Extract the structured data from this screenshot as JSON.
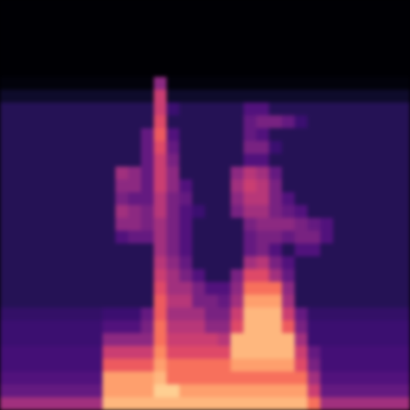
{
  "chart_data": {
    "type": "heatmap",
    "color": "magma",
    "tick_labels": false,
    "xlim": [
      0,
      32
    ],
    "ylim": [
      0,
      32
    ],
    "zlim": [
      0,
      100
    ],
    "values": [
      [
        45,
        45,
        45,
        45,
        45,
        45,
        45,
        45,
        85,
        85,
        85,
        85,
        85,
        85,
        85,
        85,
        85,
        85,
        85,
        85,
        85,
        85,
        85,
        85,
        70,
        45,
        45,
        45,
        45,
        45,
        45,
        45
      ],
      [
        30,
        30,
        30,
        30,
        30,
        30,
        30,
        30,
        80,
        80,
        80,
        80,
        90,
        90,
        80,
        80,
        80,
        80,
        80,
        80,
        80,
        80,
        80,
        80,
        55,
        30,
        30,
        30,
        30,
        30,
        30,
        30
      ],
      [
        25,
        25,
        25,
        25,
        25,
        25,
        25,
        25,
        80,
        80,
        80,
        80,
        85,
        70,
        70,
        70,
        70,
        70,
        70,
        70,
        70,
        70,
        70,
        70,
        45,
        25,
        25,
        25,
        25,
        25,
        25,
        25
      ],
      [
        22,
        22,
        22,
        22,
        22,
        22,
        22,
        22,
        65,
        65,
        65,
        65,
        80,
        70,
        70,
        70,
        70,
        70,
        80,
        80,
        80,
        80,
        80,
        60,
        35,
        22,
        22,
        22,
        22,
        22,
        22,
        22
      ],
      [
        22,
        22,
        22,
        22,
        22,
        22,
        22,
        22,
        55,
        55,
        55,
        55,
        75,
        60,
        60,
        60,
        60,
        60,
        85,
        85,
        85,
        85,
        85,
        55,
        30,
        22,
        22,
        22,
        22,
        22,
        22,
        22
      ],
      [
        20,
        20,
        20,
        20,
        20,
        20,
        20,
        20,
        40,
        40,
        40,
        40,
        70,
        55,
        55,
        55,
        55,
        50,
        85,
        85,
        85,
        85,
        85,
        45,
        20,
        20,
        20,
        20,
        20,
        20,
        20,
        20
      ],
      [
        20,
        20,
        20,
        20,
        20,
        20,
        20,
        20,
        25,
        25,
        25,
        35,
        70,
        50,
        50,
        50,
        40,
        40,
        60,
        85,
        85,
        85,
        65,
        35,
        20,
        20,
        20,
        20,
        20,
        20,
        20,
        20
      ],
      [
        18,
        18,
        18,
        18,
        18,
        18,
        18,
        18,
        20,
        20,
        20,
        30,
        65,
        45,
        45,
        45,
        35,
        35,
        55,
        85,
        85,
        85,
        55,
        30,
        18,
        18,
        18,
        18,
        18,
        18,
        18,
        18
      ],
      [
        15,
        15,
        15,
        15,
        15,
        15,
        15,
        15,
        15,
        15,
        15,
        15,
        65,
        50,
        50,
        35,
        35,
        30,
        45,
        80,
        80,
        80,
        45,
        15,
        15,
        15,
        15,
        15,
        15,
        15,
        15,
        15
      ],
      [
        15,
        15,
        15,
        15,
        15,
        15,
        15,
        15,
        15,
        15,
        15,
        15,
        60,
        45,
        45,
        35,
        25,
        25,
        40,
        70,
        70,
        70,
        40,
        15,
        15,
        15,
        15,
        15,
        15,
        15,
        15,
        15
      ],
      [
        15,
        15,
        15,
        15,
        15,
        15,
        15,
        15,
        15,
        15,
        15,
        15,
        55,
        45,
        35,
        25,
        15,
        15,
        35,
        60,
        60,
        45,
        30,
        15,
        15,
        15,
        15,
        15,
        15,
        15,
        15,
        15
      ],
      [
        15,
        15,
        15,
        15,
        15,
        15,
        15,
        15,
        15,
        15,
        15,
        15,
        50,
        40,
        30,
        15,
        15,
        15,
        15,
        45,
        50,
        35,
        25,
        15,
        15,
        15,
        15,
        15,
        15,
        15,
        15,
        15
      ],
      [
        15,
        15,
        15,
        15,
        15,
        15,
        15,
        15,
        15,
        15,
        15,
        15,
        45,
        35,
        25,
        15,
        15,
        15,
        15,
        30,
        35,
        25,
        15,
        25,
        25,
        15,
        15,
        15,
        15,
        15,
        15,
        15
      ],
      [
        15,
        15,
        15,
        15,
        15,
        15,
        15,
        15,
        15,
        25,
        30,
        30,
        45,
        35,
        25,
        15,
        15,
        15,
        15,
        30,
        35,
        35,
        30,
        35,
        35,
        25,
        15,
        15,
        15,
        15,
        15,
        15
      ],
      [
        15,
        15,
        15,
        15,
        15,
        15,
        15,
        15,
        15,
        40,
        40,
        35,
        45,
        35,
        25,
        15,
        15,
        15,
        15,
        35,
        40,
        40,
        40,
        35,
        30,
        25,
        15,
        15,
        15,
        15,
        15,
        15
      ],
      [
        15,
        15,
        15,
        15,
        15,
        15,
        15,
        15,
        15,
        45,
        40,
        35,
        50,
        35,
        25,
        20,
        15,
        15,
        35,
        45,
        45,
        35,
        30,
        25,
        15,
        15,
        15,
        15,
        15,
        15,
        15,
        15
      ],
      [
        15,
        15,
        15,
        15,
        15,
        15,
        15,
        15,
        15,
        35,
        30,
        30,
        50,
        35,
        30,
        15,
        15,
        15,
        40,
        50,
        50,
        35,
        25,
        15,
        15,
        15,
        15,
        15,
        15,
        15,
        15,
        15
      ],
      [
        15,
        15,
        15,
        15,
        15,
        15,
        15,
        15,
        15,
        40,
        40,
        30,
        55,
        40,
        25,
        15,
        15,
        15,
        45,
        55,
        50,
        35,
        15,
        15,
        15,
        15,
        15,
        15,
        15,
        15,
        15,
        15
      ],
      [
        15,
        15,
        15,
        15,
        15,
        15,
        15,
        15,
        15,
        45,
        40,
        30,
        55,
        40,
        15,
        15,
        15,
        15,
        40,
        50,
        45,
        30,
        15,
        15,
        15,
        15,
        15,
        15,
        15,
        15,
        15,
        15
      ],
      [
        15,
        15,
        15,
        15,
        15,
        15,
        15,
        15,
        15,
        15,
        15,
        30,
        55,
        35,
        15,
        15,
        15,
        15,
        15,
        25,
        25,
        15,
        15,
        15,
        15,
        15,
        15,
        15,
        15,
        15,
        15,
        15
      ],
      [
        15,
        15,
        15,
        15,
        15,
        15,
        15,
        15,
        15,
        15,
        15,
        30,
        60,
        30,
        15,
        15,
        15,
        15,
        15,
        35,
        35,
        20,
        15,
        15,
        15,
        15,
        15,
        15,
        15,
        15,
        15,
        15
      ],
      [
        15,
        15,
        15,
        15,
        15,
        15,
        15,
        15,
        15,
        15,
        15,
        30,
        65,
        25,
        15,
        15,
        15,
        15,
        15,
        30,
        25,
        15,
        15,
        15,
        15,
        15,
        15,
        15,
        15,
        15,
        15,
        15
      ],
      [
        15,
        15,
        15,
        15,
        15,
        15,
        15,
        15,
        15,
        15,
        15,
        15,
        60,
        15,
        15,
        15,
        15,
        15,
        15,
        30,
        35,
        35,
        30,
        20,
        15,
        15,
        15,
        15,
        15,
        15,
        15,
        15
      ],
      [
        15,
        15,
        15,
        15,
        15,
        15,
        15,
        15,
        15,
        15,
        15,
        15,
        55,
        20,
        15,
        15,
        15,
        15,
        15,
        25,
        25,
        15,
        15,
        15,
        15,
        15,
        15,
        15,
        15,
        15,
        15,
        15
      ],
      [
        8,
        8,
        8,
        8,
        8,
        8,
        8,
        8,
        8,
        8,
        8,
        8,
        55,
        8,
        8,
        8,
        8,
        8,
        8,
        8,
        8,
        8,
        8,
        8,
        8,
        8,
        8,
        8,
        8,
        8,
        8,
        8
      ],
      [
        2,
        2,
        2,
        2,
        2,
        2,
        2,
        2,
        2,
        2,
        2,
        2,
        40,
        2,
        2,
        2,
        2,
        2,
        2,
        2,
        2,
        2,
        2,
        2,
        2,
        2,
        2,
        2,
        2,
        2,
        2,
        2
      ],
      [
        0,
        0,
        0,
        0,
        0,
        0,
        0,
        0,
        0,
        0,
        0,
        0,
        0,
        0,
        0,
        0,
        0,
        0,
        0,
        0,
        0,
        0,
        0,
        0,
        0,
        0,
        0,
        0,
        0,
        0,
        0,
        0
      ],
      [
        0,
        0,
        0,
        0,
        0,
        0,
        0,
        0,
        0,
        0,
        0,
        0,
        0,
        0,
        0,
        0,
        0,
        0,
        0,
        0,
        0,
        0,
        0,
        0,
        0,
        0,
        0,
        0,
        0,
        0,
        0,
        0
      ],
      [
        0,
        0,
        0,
        0,
        0,
        0,
        0,
        0,
        0,
        0,
        0,
        0,
        0,
        0,
        0,
        0,
        0,
        0,
        0,
        0,
        0,
        0,
        0,
        0,
        0,
        0,
        0,
        0,
        0,
        0,
        0,
        0
      ],
      [
        0,
        0,
        0,
        0,
        0,
        0,
        0,
        0,
        0,
        0,
        0,
        0,
        0,
        0,
        0,
        0,
        0,
        0,
        0,
        0,
        0,
        0,
        0,
        0,
        0,
        0,
        0,
        0,
        0,
        0,
        0,
        0
      ],
      [
        0,
        0,
        0,
        0,
        0,
        0,
        0,
        0,
        0,
        0,
        0,
        0,
        0,
        0,
        0,
        0,
        0,
        0,
        0,
        0,
        0,
        0,
        0,
        0,
        0,
        0,
        0,
        0,
        0,
        0,
        0,
        0
      ],
      [
        0,
        0,
        0,
        0,
        0,
        0,
        0,
        0,
        0,
        0,
        0,
        0,
        0,
        0,
        0,
        0,
        0,
        0,
        0,
        0,
        0,
        0,
        0,
        0,
        0,
        0,
        0,
        0,
        0,
        0,
        0,
        0
      ]
    ]
  }
}
